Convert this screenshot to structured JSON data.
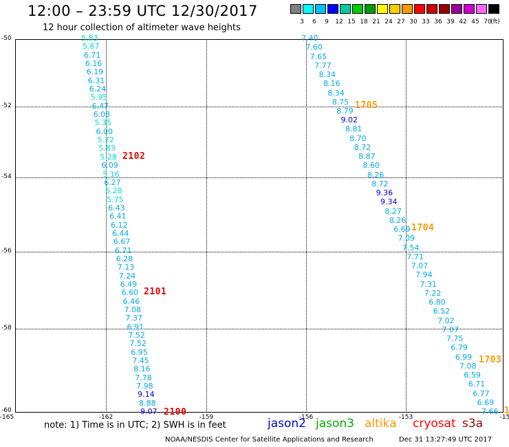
{
  "title": "12:00 – 23:59 UTC 12/30/2017",
  "subtitle": "12 hour collection of altimeter wave heights",
  "scale": {
    "unit": "(ft)",
    "colors": [
      "#808080",
      "#00ffff",
      "#00bfff",
      "#0000ff",
      "#00cc99",
      "#00cc00",
      "#009900",
      "#ffff00",
      "#ffcc00",
      "#ff9900",
      "#ff0000",
      "#cc0000",
      "#990000",
      "#990099",
      "#cc00cc",
      "#ff66ff",
      "#000000"
    ],
    "labels": [
      "3",
      "6",
      "9",
      "12",
      "15",
      "18",
      "21",
      "24",
      "27",
      "30",
      "33",
      "36",
      "39",
      "42",
      "45",
      "70"
    ]
  },
  "axes": {
    "lat_labels": [
      "-50",
      "-52",
      "-54",
      "-56",
      "-58",
      "-60"
    ],
    "lon_labels": [
      "-165",
      "-162",
      "-159",
      "-156",
      "-153",
      "-15"
    ]
  },
  "tracks": {
    "left": [
      "5.83",
      "5.67",
      "6.71",
      "6.16",
      "6.19",
      "6.31",
      "6.24",
      "5.95",
      "6.47",
      "6.08",
      "5.35",
      "6.00",
      "5.72",
      "5.83",
      "5.28",
      "6.09",
      "5.16",
      "6.27",
      "5.28",
      "5.75",
      "6.43",
      "6.41",
      "6.12",
      "6.44",
      "6.67",
      "6.71",
      "6.28",
      "7.13",
      "7.24",
      "6.49",
      "6.60",
      "6.46",
      "7.08",
      "7.37",
      "6.91",
      "7.52",
      "7.52",
      "6.95",
      "7.45",
      "8.16",
      "7.78",
      "7.98",
      "9.14",
      "8.88",
      "9.07"
    ],
    "right": [
      "7.40",
      "7.60",
      "7.65",
      "7.77",
      "8.34",
      "8.16",
      "8.34",
      "8.75",
      "8.79",
      "9.02",
      "8.81",
      "8.70",
      "8.72",
      "8.87",
      "8.60",
      "8.26",
      "8.72",
      "9.36",
      "9.34",
      "8.27",
      "8.26",
      "6.69",
      "7.09",
      "7.54",
      "7.71",
      "7.07",
      "7.94",
      "7.31",
      "7.22",
      "6.80",
      "6.52",
      "7.02",
      "7.07",
      "7.75",
      "6.79",
      "6.99",
      "7.08",
      "6.59",
      "6.71",
      "6.77",
      "6.69",
      "7.66"
    ]
  },
  "passes": [
    {
      "label": "2102",
      "color": "#e00000"
    },
    {
      "label": "2101",
      "color": "#e00000"
    },
    {
      "label": "2100",
      "color": "#e00000"
    },
    {
      "label": "1705",
      "color": "#ff9900"
    },
    {
      "label": "1704",
      "color": "#ff9900"
    },
    {
      "label": "1703",
      "color": "#ff9900"
    },
    {
      "label": "1",
      "color": "#ff9900"
    }
  ],
  "note": "note: 1) Time is in UTC; 2) SWH is in feet",
  "legend": [
    {
      "name": "jason2",
      "color": "#0000cc"
    },
    {
      "name": "jason3",
      "color": "#00aa00"
    },
    {
      "name": "altika",
      "color": "#ff9900"
    },
    {
      "name": "cryosat",
      "color": "#ff0000"
    },
    {
      "name": "s3a",
      "color": "#990000"
    }
  ],
  "footer": {
    "center": "NOAA/NESDIS Center for Satellite Applications and Research",
    "timestamp": "Dec 31 13:27:49 UTC 2017"
  }
}
